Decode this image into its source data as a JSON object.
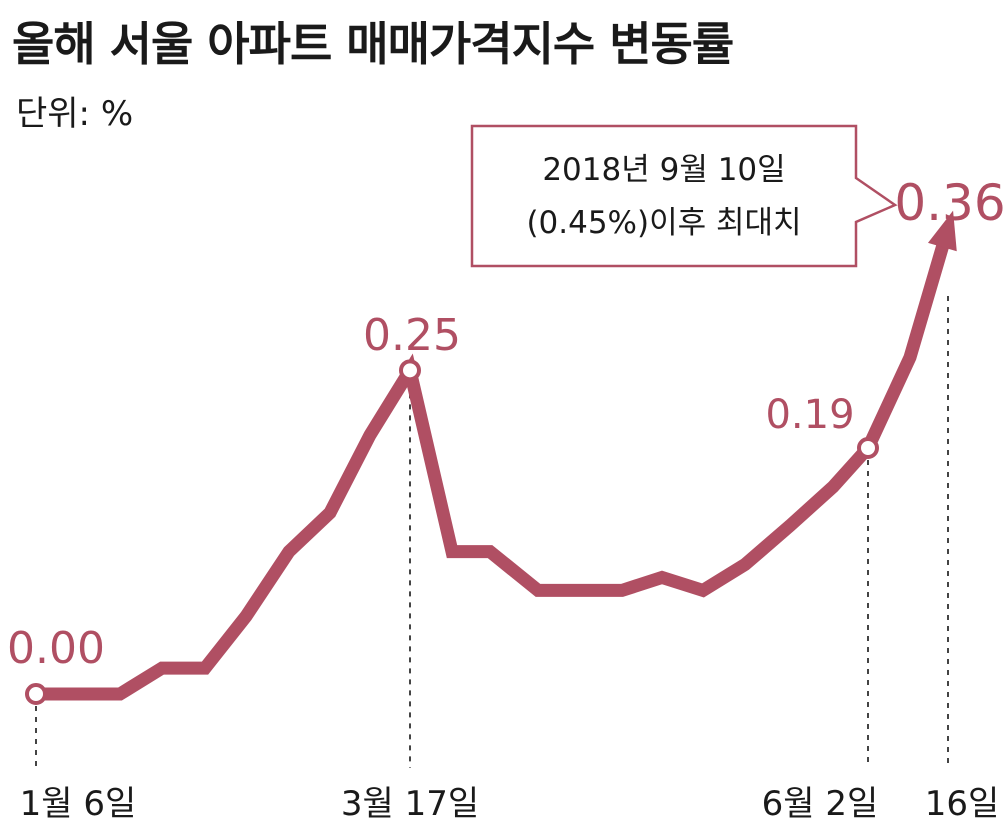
{
  "title": "올해 서울 아파트 매매가격지수 변동률",
  "unit_label": "단위: %",
  "colors": {
    "line": "#b04f63",
    "label": "#b04f63",
    "text": "#1a1a1a",
    "dash": "#444444"
  },
  "annotation": {
    "line1": "2018년 9월 10일",
    "line2": "(0.45%)이후 최대치"
  },
  "chart_data": {
    "type": "line",
    "title": "올해 서울 아파트 매매가격지수 변동률",
    "ylabel": "단위: %",
    "xlabel": "",
    "grid": false,
    "legend": "none",
    "series": [
      {
        "values": [
          0.0,
          0.0,
          0.0,
          0.02,
          0.02,
          0.06,
          0.11,
          0.14,
          0.2,
          0.25,
          0.11,
          0.11,
          0.08,
          0.08,
          0.08,
          0.09,
          0.08,
          0.1,
          0.13,
          0.16,
          0.19,
          0.26,
          0.36
        ]
      }
    ],
    "labeled_points": [
      {
        "index": 0,
        "label": "0.00"
      },
      {
        "index": 9,
        "label": "0.25"
      },
      {
        "index": 20,
        "label": "0.19"
      },
      {
        "index": 22,
        "label": "0.36"
      }
    ],
    "tick_labels": [
      {
        "index": 0,
        "label": "1월 6일"
      },
      {
        "index": 9,
        "label": "3월 17일"
      },
      {
        "index": 20,
        "label": "6월 2일"
      },
      {
        "index": 22,
        "label": "16일"
      }
    ],
    "ylim": [
      0,
      0.38
    ]
  }
}
